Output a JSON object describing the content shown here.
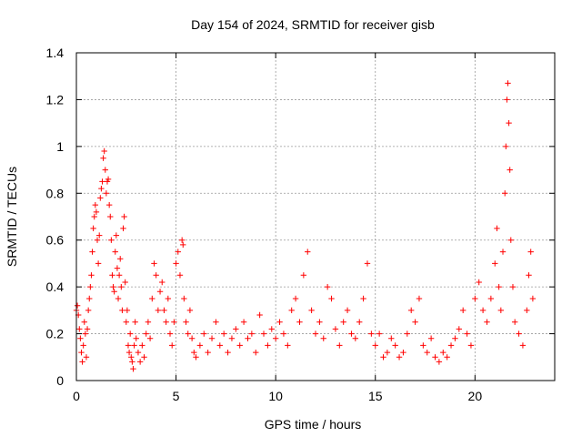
{
  "chart_data": {
    "type": "scatter",
    "title": "Day 154 of 2024, SRMTID for receiver gisb",
    "xlabel": "GPS time / hours",
    "ylabel": "SRMTID / TECUs",
    "xlim": [
      0,
      24
    ],
    "ylim": [
      0,
      1.4
    ],
    "x_ticks": [
      0,
      5,
      10,
      15,
      20
    ],
    "x_tick_labels": [
      "0",
      "5",
      "10",
      "15",
      "20"
    ],
    "y_ticks": [
      0,
      0.2,
      0.4,
      0.6,
      0.8,
      1.0,
      1.2,
      1.4
    ],
    "y_tick_labels": [
      "0",
      "0.2",
      "0.4",
      "0.6",
      "0.8",
      "1",
      "1.2",
      "1.4"
    ],
    "grid": true,
    "marker": "plus",
    "color": "#ff0000",
    "series": [
      {
        "name": "SRMTID",
        "points": [
          [
            0.0,
            0.3
          ],
          [
            0.05,
            0.32
          ],
          [
            0.1,
            0.28
          ],
          [
            0.15,
            0.22
          ],
          [
            0.2,
            0.18
          ],
          [
            0.25,
            0.12
          ],
          [
            0.3,
            0.08
          ],
          [
            0.35,
            0.15
          ],
          [
            0.4,
            0.25
          ],
          [
            0.45,
            0.2
          ],
          [
            0.5,
            0.1
          ],
          [
            0.55,
            0.22
          ],
          [
            0.6,
            0.3
          ],
          [
            0.65,
            0.35
          ],
          [
            0.7,
            0.4
          ],
          [
            0.75,
            0.45
          ],
          [
            0.8,
            0.55
          ],
          [
            0.85,
            0.65
          ],
          [
            0.9,
            0.7
          ],
          [
            0.95,
            0.75
          ],
          [
            1.0,
            0.72
          ],
          [
            1.05,
            0.6
          ],
          [
            1.1,
            0.5
          ],
          [
            1.15,
            0.62
          ],
          [
            1.2,
            0.78
          ],
          [
            1.25,
            0.82
          ],
          [
            1.3,
            0.85
          ],
          [
            1.35,
            0.95
          ],
          [
            1.4,
            0.98
          ],
          [
            1.45,
            0.9
          ],
          [
            1.5,
            0.8
          ],
          [
            1.55,
            0.85
          ],
          [
            1.6,
            0.86
          ],
          [
            1.65,
            0.75
          ],
          [
            1.7,
            0.7
          ],
          [
            1.75,
            0.6
          ],
          [
            1.8,
            0.45
          ],
          [
            1.85,
            0.4
          ],
          [
            1.9,
            0.38
          ],
          [
            1.95,
            0.55
          ],
          [
            2.0,
            0.62
          ],
          [
            2.05,
            0.48
          ],
          [
            2.1,
            0.35
          ],
          [
            2.15,
            0.45
          ],
          [
            2.2,
            0.52
          ],
          [
            2.25,
            0.4
          ],
          [
            2.3,
            0.3
          ],
          [
            2.35,
            0.65
          ],
          [
            2.4,
            0.7
          ],
          [
            2.45,
            0.42
          ],
          [
            2.5,
            0.25
          ],
          [
            2.55,
            0.3
          ],
          [
            2.6,
            0.15
          ],
          [
            2.65,
            0.12
          ],
          [
            2.7,
            0.2
          ],
          [
            2.75,
            0.1
          ],
          [
            2.8,
            0.08
          ],
          [
            2.85,
            0.05
          ],
          [
            2.9,
            0.15
          ],
          [
            2.95,
            0.25
          ],
          [
            3.0,
            0.18
          ],
          [
            3.1,
            0.12
          ],
          [
            3.2,
            0.08
          ],
          [
            3.3,
            0.15
          ],
          [
            3.4,
            0.1
          ],
          [
            3.5,
            0.2
          ],
          [
            3.6,
            0.25
          ],
          [
            3.7,
            0.18
          ],
          [
            3.8,
            0.35
          ],
          [
            3.9,
            0.5
          ],
          [
            4.0,
            0.45
          ],
          [
            4.1,
            0.3
          ],
          [
            4.2,
            0.38
          ],
          [
            4.3,
            0.42
          ],
          [
            4.4,
            0.3
          ],
          [
            4.5,
            0.25
          ],
          [
            4.6,
            0.35
          ],
          [
            4.7,
            0.2
          ],
          [
            4.8,
            0.15
          ],
          [
            4.9,
            0.25
          ],
          [
            5.0,
            0.5
          ],
          [
            5.1,
            0.55
          ],
          [
            5.2,
            0.45
          ],
          [
            5.3,
            0.6
          ],
          [
            5.35,
            0.58
          ],
          [
            5.4,
            0.35
          ],
          [
            5.5,
            0.25
          ],
          [
            5.6,
            0.2
          ],
          [
            5.7,
            0.3
          ],
          [
            5.8,
            0.18
          ],
          [
            5.9,
            0.12
          ],
          [
            6.0,
            0.1
          ],
          [
            6.2,
            0.15
          ],
          [
            6.4,
            0.2
          ],
          [
            6.6,
            0.12
          ],
          [
            6.8,
            0.18
          ],
          [
            7.0,
            0.25
          ],
          [
            7.2,
            0.15
          ],
          [
            7.4,
            0.2
          ],
          [
            7.6,
            0.12
          ],
          [
            7.8,
            0.18
          ],
          [
            8.0,
            0.22
          ],
          [
            8.2,
            0.15
          ],
          [
            8.4,
            0.25
          ],
          [
            8.6,
            0.18
          ],
          [
            8.8,
            0.2
          ],
          [
            9.0,
            0.12
          ],
          [
            9.2,
            0.28
          ],
          [
            9.4,
            0.2
          ],
          [
            9.6,
            0.15
          ],
          [
            9.8,
            0.22
          ],
          [
            10.0,
            0.18
          ],
          [
            10.2,
            0.25
          ],
          [
            10.4,
            0.2
          ],
          [
            10.6,
            0.15
          ],
          [
            10.8,
            0.3
          ],
          [
            11.0,
            0.35
          ],
          [
            11.2,
            0.25
          ],
          [
            11.4,
            0.45
          ],
          [
            11.6,
            0.55
          ],
          [
            11.8,
            0.3
          ],
          [
            12.0,
            0.2
          ],
          [
            12.2,
            0.25
          ],
          [
            12.4,
            0.18
          ],
          [
            12.6,
            0.4
          ],
          [
            12.8,
            0.35
          ],
          [
            13.0,
            0.22
          ],
          [
            13.2,
            0.15
          ],
          [
            13.4,
            0.25
          ],
          [
            13.6,
            0.3
          ],
          [
            13.8,
            0.2
          ],
          [
            14.0,
            0.18
          ],
          [
            14.2,
            0.25
          ],
          [
            14.4,
            0.35
          ],
          [
            14.6,
            0.5
          ],
          [
            14.8,
            0.2
          ],
          [
            15.0,
            0.15
          ],
          [
            15.2,
            0.2
          ],
          [
            15.4,
            0.1
          ],
          [
            15.6,
            0.12
          ],
          [
            15.8,
            0.18
          ],
          [
            16.0,
            0.15
          ],
          [
            16.2,
            0.1
          ],
          [
            16.4,
            0.12
          ],
          [
            16.6,
            0.2
          ],
          [
            16.8,
            0.3
          ],
          [
            17.0,
            0.25
          ],
          [
            17.2,
            0.35
          ],
          [
            17.4,
            0.15
          ],
          [
            17.6,
            0.12
          ],
          [
            17.8,
            0.18
          ],
          [
            18.0,
            0.1
          ],
          [
            18.2,
            0.08
          ],
          [
            18.4,
            0.12
          ],
          [
            18.6,
            0.1
          ],
          [
            18.8,
            0.15
          ],
          [
            19.0,
            0.18
          ],
          [
            19.2,
            0.22
          ],
          [
            19.4,
            0.3
          ],
          [
            19.6,
            0.2
          ],
          [
            19.8,
            0.15
          ],
          [
            20.0,
            0.35
          ],
          [
            20.2,
            0.42
          ],
          [
            20.4,
            0.3
          ],
          [
            20.6,
            0.25
          ],
          [
            20.8,
            0.35
          ],
          [
            21.0,
            0.5
          ],
          [
            21.1,
            0.65
          ],
          [
            21.2,
            0.4
          ],
          [
            21.3,
            0.3
          ],
          [
            21.4,
            0.55
          ],
          [
            21.5,
            0.8
          ],
          [
            21.55,
            1.0
          ],
          [
            21.6,
            1.2
          ],
          [
            21.65,
            1.27
          ],
          [
            21.7,
            1.1
          ],
          [
            21.75,
            0.9
          ],
          [
            21.8,
            0.6
          ],
          [
            21.9,
            0.4
          ],
          [
            22.0,
            0.25
          ],
          [
            22.2,
            0.2
          ],
          [
            22.4,
            0.15
          ],
          [
            22.6,
            0.3
          ],
          [
            22.7,
            0.45
          ],
          [
            22.8,
            0.55
          ],
          [
            22.9,
            0.35
          ]
        ]
      }
    ]
  }
}
